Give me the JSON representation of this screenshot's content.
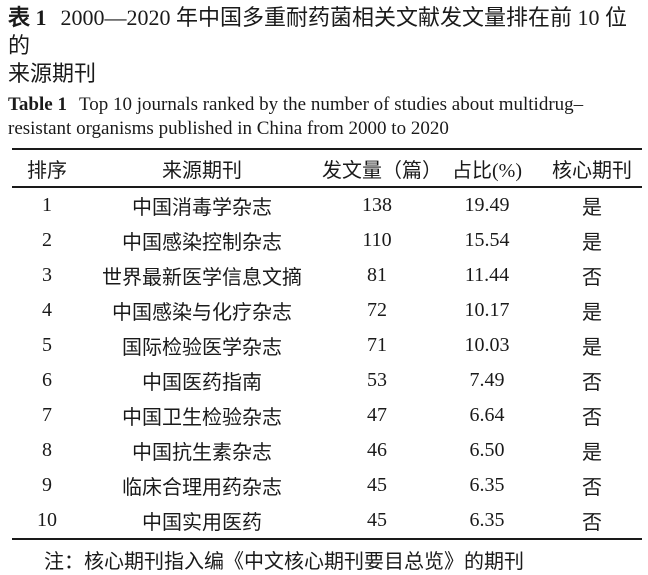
{
  "caption_cn": {
    "label": "表 1",
    "line1": "2000—2020 年中国多重耐药菌相关文献发文量排在前 10 位的",
    "line2": "来源期刊"
  },
  "caption_en": {
    "label": "Table 1",
    "line1": "Top 10 journals ranked by the number of studies about multidrug–",
    "line2": "resistant organisms published in China from 2000 to 2020"
  },
  "table": {
    "headers": [
      "排序",
      "来源期刊",
      "发文量（篇）",
      "占比(%)",
      "核心期刊"
    ],
    "rows": [
      [
        "1",
        "中国消毒学杂志",
        "138",
        "19.49",
        "是"
      ],
      [
        "2",
        "中国感染控制杂志",
        "110",
        "15.54",
        "是"
      ],
      [
        "3",
        "世界最新医学信息文摘",
        "81",
        "11.44",
        "否"
      ],
      [
        "4",
        "中国感染与化疗杂志",
        "72",
        "10.17",
        "是"
      ],
      [
        "5",
        "国际检验医学杂志",
        "71",
        "10.03",
        "是"
      ],
      [
        "6",
        "中国医药指南",
        "53",
        "7.49",
        "否"
      ],
      [
        "7",
        "中国卫生检验杂志",
        "47",
        "6.64",
        "否"
      ],
      [
        "8",
        "中国抗生素杂志",
        "46",
        "6.50",
        "是"
      ],
      [
        "9",
        "临床合理用药杂志",
        "45",
        "6.35",
        "否"
      ],
      [
        "10",
        "中国实用医药",
        "45",
        "6.35",
        "否"
      ]
    ]
  },
  "note": "注：核心期刊指入编《中文核心期刊要目总览》的期刊",
  "colors": {
    "text": "#1a1a1a",
    "background": "#ffffff",
    "rule": "#1a1a1a"
  }
}
